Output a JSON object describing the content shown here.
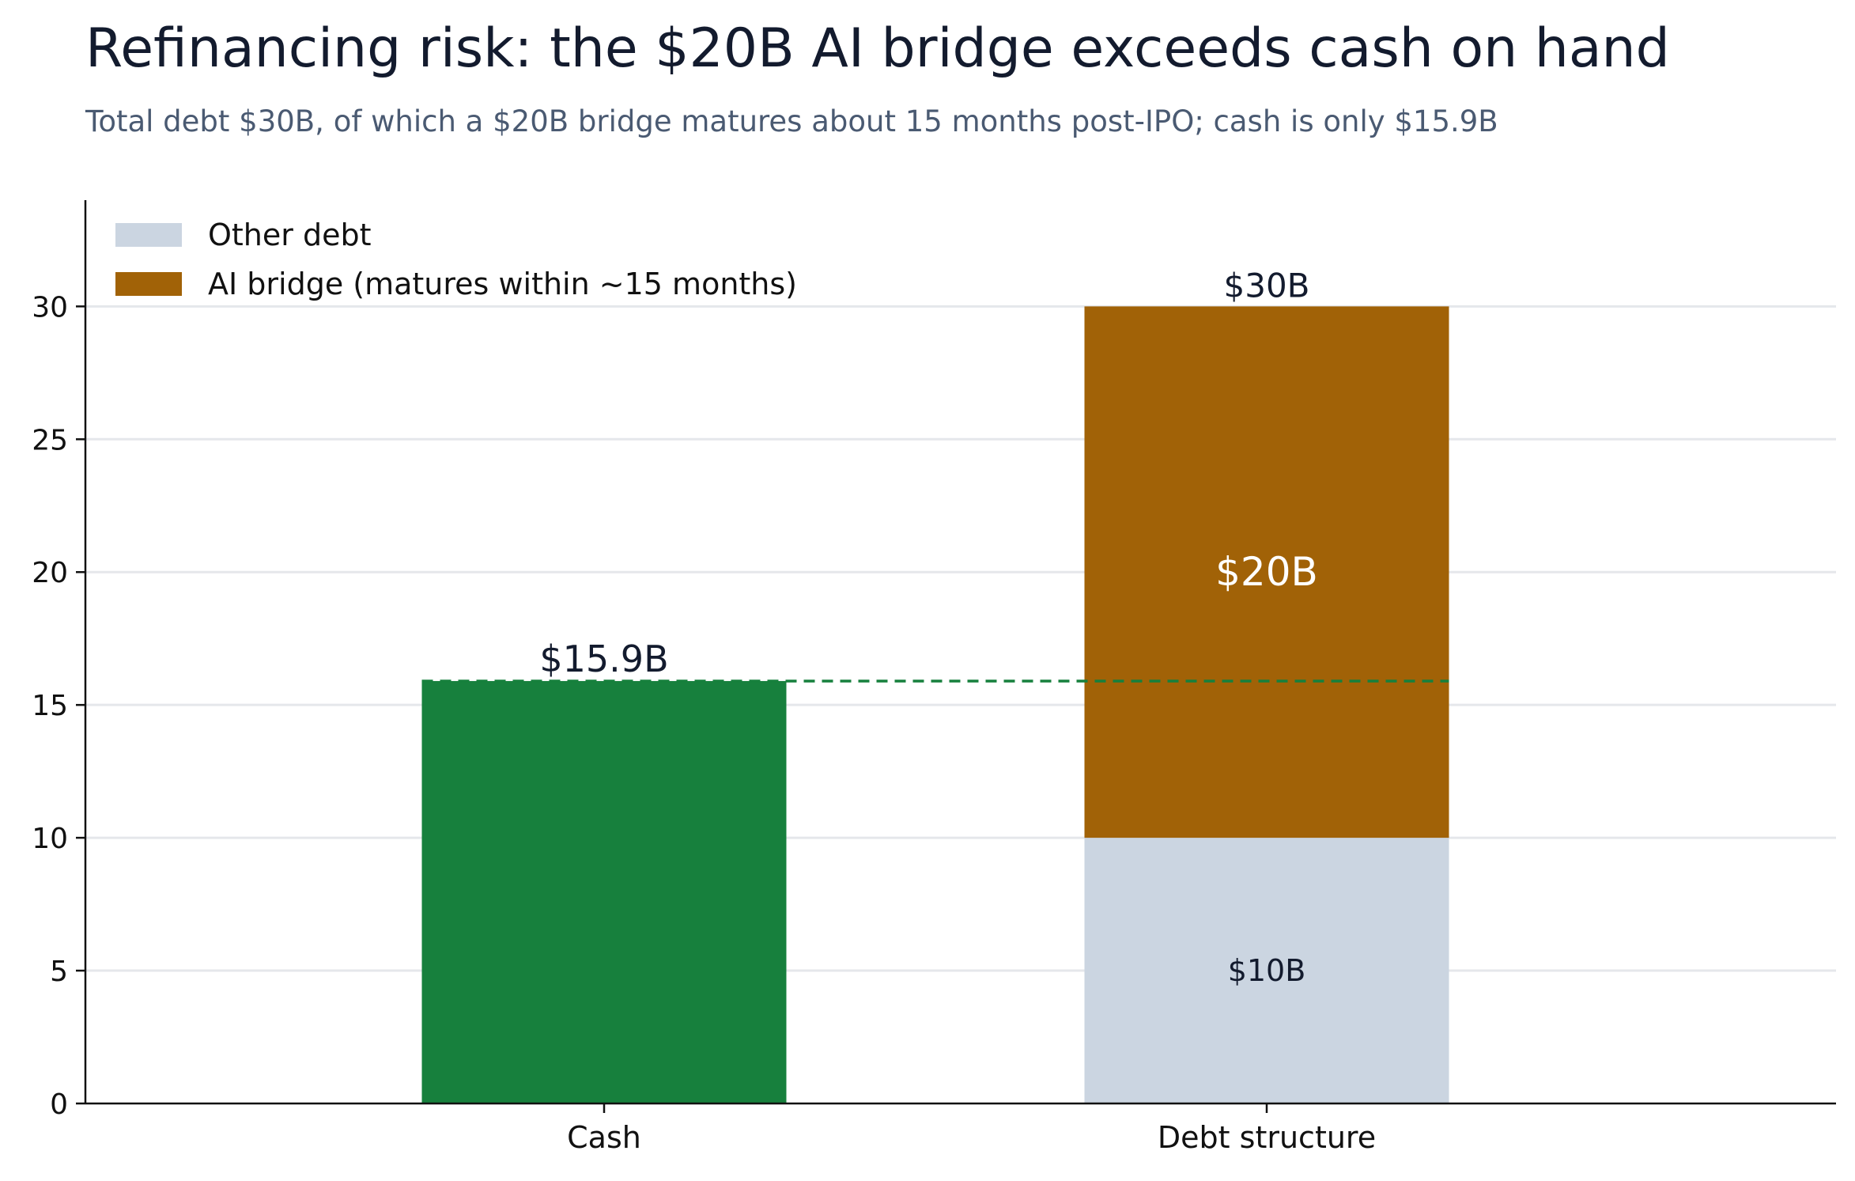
{
  "chart_data": {
    "type": "bar",
    "stacked": true,
    "title": "Refinancing risk: the $20B AI bridge exceeds cash on hand",
    "subtitle": "Total debt $30B, of which a $20B bridge matures about 15 months post-IPO; cash is only $15.9B",
    "categories": [
      "Cash",
      "Debt structure"
    ],
    "series": [
      {
        "name": null,
        "key": "cash",
        "values": [
          15.9,
          0
        ],
        "color": "#17803d",
        "labels": [
          "$15.9B",
          null
        ]
      },
      {
        "name": "Other debt",
        "key": "other",
        "values": [
          0,
          10
        ],
        "color": "#cbd5e1",
        "labels": [
          null,
          "$10B"
        ]
      },
      {
        "name": "AI bridge (matures within ~15 months)",
        "key": "bridge",
        "values": [
          0,
          20
        ],
        "color": "#a16207",
        "labels": [
          null,
          "$20B"
        ]
      }
    ],
    "totals": [
      {
        "category": "Debt structure",
        "value": 30,
        "label": "$30B"
      }
    ],
    "reference_line": {
      "value": 15.9,
      "style": "dashed",
      "color": "#17803d"
    },
    "ylim": [
      0,
      34
    ],
    "yticks": [
      0,
      5,
      10,
      15,
      20,
      25,
      30
    ],
    "grid": "horizontal",
    "legend": {
      "position": "top-left",
      "items": [
        "Other debt",
        "AI bridge (matures within ~15 months)"
      ]
    }
  }
}
